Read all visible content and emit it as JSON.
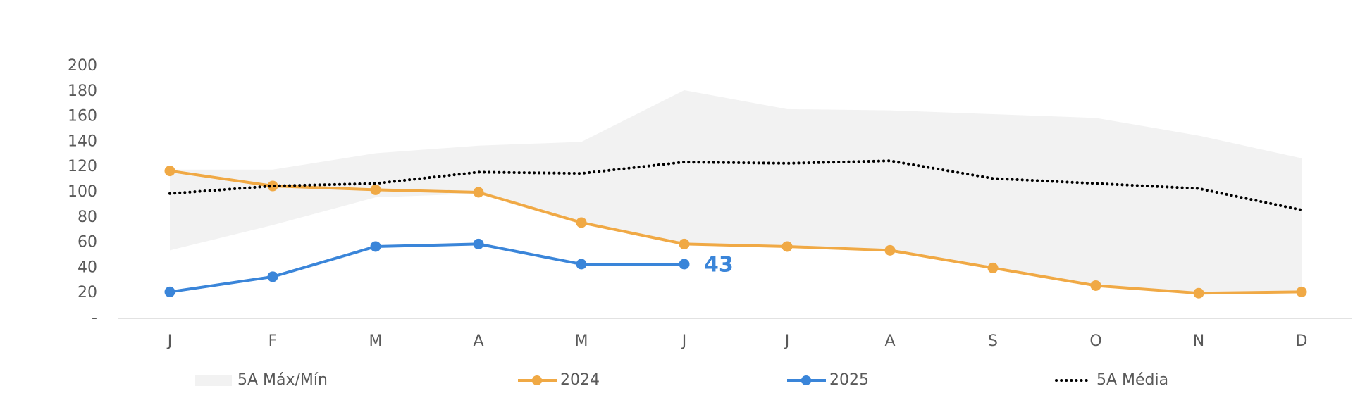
{
  "chart_data": {
    "type": "line",
    "categories": [
      "J",
      "F",
      "M",
      "A",
      "M",
      "J",
      "J",
      "A",
      "S",
      "O",
      "N",
      "D"
    ],
    "ylim": [
      0,
      200
    ],
    "yticks": [
      {
        "value": 0,
        "label": "-"
      },
      20,
      40,
      60,
      80,
      100,
      120,
      140,
      160,
      180,
      200
    ],
    "series": [
      {
        "name": "5A Máx/Mín",
        "color": "#f2f2f2",
        "type": "band",
        "max": [
          118,
          118,
          131,
          137,
          140,
          181,
          166,
          165,
          162,
          159,
          145,
          127
        ],
        "min": [
          54,
          74,
          96,
          99,
          76,
          59,
          57,
          54,
          40,
          26,
          20,
          20
        ]
      },
      {
        "name": "2024",
        "color": "#f0a945",
        "type": "line",
        "values": [
          117,
          105,
          102,
          100,
          76,
          59,
          57,
          54,
          40,
          26,
          20,
          21
        ]
      },
      {
        "name": "2025",
        "color": "#3a85d9",
        "type": "line",
        "values": [
          21,
          33,
          57,
          59,
          43,
          43,
          null,
          null,
          null,
          null,
          null,
          null
        ]
      },
      {
        "name": "5A Média",
        "color": "#000000",
        "type": "dotted",
        "values": [
          99,
          105,
          107,
          116,
          115,
          124,
          123,
          125,
          111,
          107,
          103,
          86
        ]
      }
    ]
  }
}
